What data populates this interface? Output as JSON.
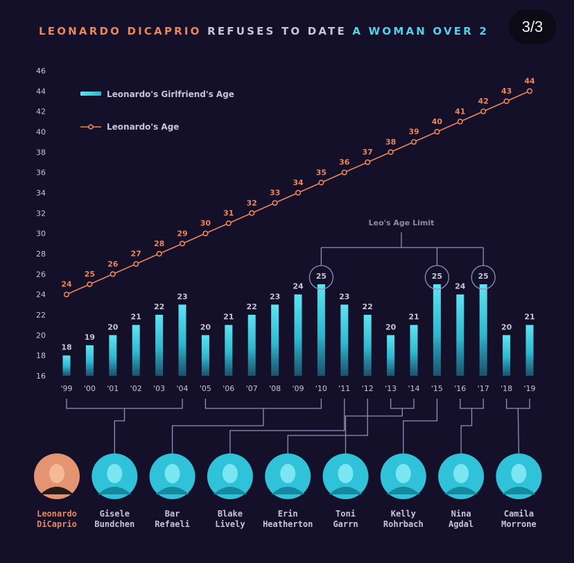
{
  "header": {
    "title_part1": "LEONARDO DICAPRIO",
    "title_part2": "REFUSES TO DATE",
    "title_part3": "A WOMAN OVER 2",
    "page_indicator": "3/3"
  },
  "colors": {
    "background": "#14102a",
    "leo": "#e9865a",
    "girlfriend": "#3fd0e3",
    "connector": "#8a93b8",
    "text": "#c8c3d6"
  },
  "chart_data": {
    "type": "bar",
    "categories": [
      "'99",
      "'00",
      "'01",
      "'02",
      "'03",
      "'04",
      "'05",
      "'06",
      "'07",
      "'08",
      "'09",
      "'10",
      "'11",
      "'12",
      "'13",
      "'14",
      "'15",
      "'16",
      "'17",
      "'18",
      "'19"
    ],
    "series": [
      {
        "name": "Leonardo's Girlfriend's Age",
        "type": "bar",
        "values": [
          18,
          19,
          20,
          21,
          22,
          23,
          20,
          21,
          22,
          23,
          24,
          25,
          23,
          22,
          20,
          21,
          25,
          24,
          25,
          20,
          21
        ]
      },
      {
        "name": "Leonardo's Age",
        "type": "line",
        "values": [
          24,
          25,
          26,
          27,
          28,
          29,
          30,
          31,
          32,
          33,
          34,
          35,
          36,
          37,
          38,
          39,
          40,
          41,
          42,
          43,
          44
        ]
      }
    ],
    "ylim": [
      16,
      46
    ],
    "yticks": [
      16,
      18,
      20,
      22,
      24,
      26,
      28,
      30,
      32,
      34,
      36,
      38,
      40,
      42,
      44,
      46
    ],
    "legend_position": "top-left",
    "annotation": {
      "text": "Leo's Age Limit",
      "highlighted_categories": [
        "'10",
        "'15",
        "'17"
      ],
      "value": 25
    },
    "grid": false
  },
  "people": [
    {
      "name_line1": "Leonardo",
      "name_line2": "DiCaprio",
      "is_leo": true,
      "years": []
    },
    {
      "name_line1": "Gisele",
      "name_line2": "Bundchen",
      "is_leo": false,
      "years": [
        "'99",
        "'04"
      ]
    },
    {
      "name_line1": "Bar",
      "name_line2": "Refaeli",
      "is_leo": false,
      "years": [
        "'05",
        "'10"
      ]
    },
    {
      "name_line1": "Blake",
      "name_line2": "Lively",
      "is_leo": false,
      "years": [
        "'11"
      ]
    },
    {
      "name_line1": "Erin",
      "name_line2": "Heatherton",
      "is_leo": false,
      "years": [
        "'12"
      ]
    },
    {
      "name_line1": "Toni",
      "name_line2": "Garrn",
      "is_leo": false,
      "years": [
        "'13",
        "'14"
      ]
    },
    {
      "name_line1": "Kelly",
      "name_line2": "Rohrbach",
      "is_leo": false,
      "years": [
        "'15"
      ]
    },
    {
      "name_line1": "Nina",
      "name_line2": "Agdal",
      "is_leo": false,
      "years": [
        "'16",
        "'17"
      ]
    },
    {
      "name_line1": "Camila",
      "name_line2": "Morrone",
      "is_leo": false,
      "years": [
        "'18",
        "'19"
      ]
    }
  ]
}
